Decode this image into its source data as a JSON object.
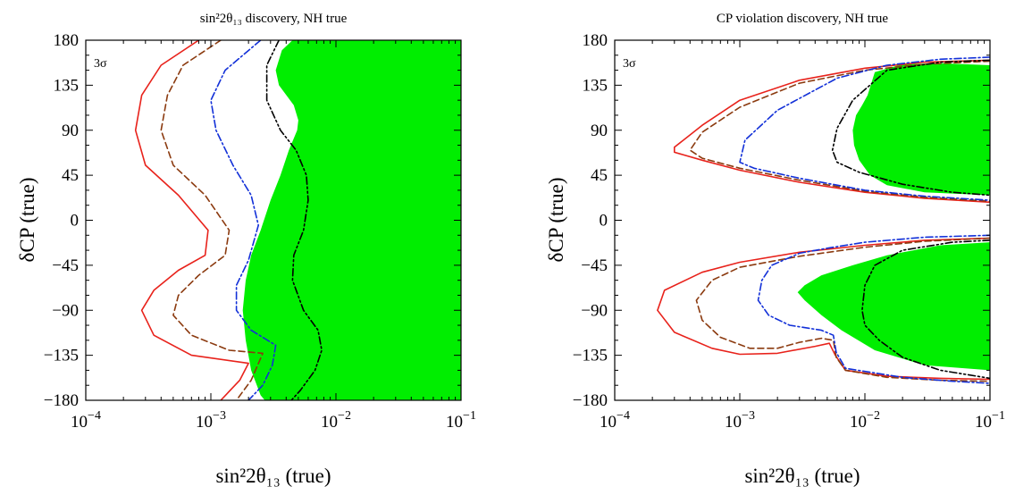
{
  "colors": {
    "region": "#00ee00",
    "dune_red": "#e8221b",
    "brown": "#8b3a0f",
    "blue": "#1230d8",
    "black": "#000000"
  },
  "chart_data": [
    {
      "type": "line",
      "title": "sin²2θ₁₃  discovery, NH true",
      "xlabel": "sin²2θ₁₃ (true)",
      "ylabel": "δCP (true)",
      "xscale": "log",
      "xlim": [
        0.0001,
        0.1
      ],
      "ylim": [
        -180,
        180
      ],
      "xticks": [
        0.0001,
        0.001,
        0.01,
        0.1
      ],
      "xtick_labels": [
        "10^-4",
        "10^-3",
        "10^-2",
        "10^-1"
      ],
      "yticks": [
        180,
        135,
        90,
        45,
        0,
        -45,
        -90,
        -135,
        -180
      ],
      "ytick_labels": [
        "180",
        "135",
        "90",
        "45",
        "0",
        "−45",
        "−90",
        "−135",
        "−180"
      ],
      "annotation": "3σ",
      "regions": [
        {
          "color": "#00ee00",
          "boundary_left": [
            [
              0.0045,
              180
            ],
            [
              0.0037,
              170
            ],
            [
              0.0033,
              150
            ],
            [
              0.0035,
              135
            ],
            [
              0.0046,
              115
            ],
            [
              0.005,
              100
            ],
            [
              0.0049,
              90
            ],
            [
              0.0042,
              70
            ],
            [
              0.0036,
              45
            ],
            [
              0.003,
              20
            ],
            [
              0.0025,
              -10
            ],
            [
              0.0021,
              -35
            ],
            [
              0.0019,
              -60
            ],
            [
              0.0018,
              -90
            ],
            [
              0.0019,
              -120
            ],
            [
              0.0021,
              -150
            ],
            [
              0.0025,
              -175
            ],
            [
              0.0027,
              -180
            ]
          ],
          "fills_to": "xmax"
        }
      ],
      "series": [
        {
          "color": "#e8221b",
          "style": "solid",
          "points": [
            [
              0.0008,
              180
            ],
            [
              0.0004,
              155
            ],
            [
              0.00028,
              125
            ],
            [
              0.00025,
              90
            ],
            [
              0.0003,
              55
            ],
            [
              0.00055,
              25
            ],
            [
              0.00095,
              -10
            ],
            [
              0.0009,
              -35
            ],
            [
              0.00055,
              -50
            ],
            [
              0.00035,
              -70
            ],
            [
              0.00028,
              -90
            ],
            [
              0.00035,
              -115
            ],
            [
              0.0007,
              -135
            ],
            [
              0.002,
              -143
            ],
            [
              0.0017,
              -160
            ],
            [
              0.0012,
              -180
            ]
          ]
        },
        {
          "color": "#8b3a0f",
          "style": "dashed",
          "points": [
            [
              0.0012,
              180
            ],
            [
              0.0006,
              155
            ],
            [
              0.00045,
              125
            ],
            [
              0.0004,
              90
            ],
            [
              0.0005,
              55
            ],
            [
              0.0009,
              25
            ],
            [
              0.0014,
              -10
            ],
            [
              0.0013,
              -35
            ],
            [
              0.0008,
              -55
            ],
            [
              0.00055,
              -75
            ],
            [
              0.0005,
              -95
            ],
            [
              0.0007,
              -115
            ],
            [
              0.0014,
              -130
            ],
            [
              0.0026,
              -133
            ],
            [
              0.0021,
              -160
            ],
            [
              0.0016,
              -180
            ]
          ]
        },
        {
          "color": "#1230d8",
          "style": "dashdot",
          "points": [
            [
              0.0025,
              180
            ],
            [
              0.0013,
              150
            ],
            [
              0.001,
              120
            ],
            [
              0.0011,
              90
            ],
            [
              0.0015,
              55
            ],
            [
              0.0021,
              25
            ],
            [
              0.0024,
              -5
            ],
            [
              0.002,
              -40
            ],
            [
              0.0016,
              -65
            ],
            [
              0.0016,
              -90
            ],
            [
              0.0021,
              -110
            ],
            [
              0.0033,
              -125
            ],
            [
              0.0031,
              -145
            ],
            [
              0.0026,
              -165
            ],
            [
              0.002,
              -180
            ]
          ]
        },
        {
          "color": "#000000",
          "style": "dashdotdot",
          "points": [
            [
              0.0035,
              180
            ],
            [
              0.0028,
              155
            ],
            [
              0.0028,
              120
            ],
            [
              0.0036,
              90
            ],
            [
              0.0048,
              70
            ],
            [
              0.0058,
              45
            ],
            [
              0.006,
              20
            ],
            [
              0.0055,
              -10
            ],
            [
              0.0046,
              -35
            ],
            [
              0.0045,
              -60
            ],
            [
              0.0055,
              -90
            ],
            [
              0.0072,
              -110
            ],
            [
              0.0077,
              -130
            ],
            [
              0.0068,
              -150
            ],
            [
              0.0052,
              -170
            ],
            [
              0.0044,
              -180
            ]
          ]
        }
      ]
    },
    {
      "type": "line",
      "title": "CP violation discovery, NH true",
      "xlabel": "sin²2θ₁₃ (true)",
      "ylabel": "δCP (true)",
      "xscale": "log",
      "xlim": [
        0.0001,
        0.1
      ],
      "ylim": [
        -180,
        180
      ],
      "xticks": [
        0.0001,
        0.001,
        0.01,
        0.1
      ],
      "xtick_labels": [
        "10^-4",
        "10^-3",
        "10^-2",
        "10^-1"
      ],
      "yticks": [
        180,
        135,
        90,
        45,
        0,
        -45,
        -90,
        -135,
        -180
      ],
      "ytick_labels": [
        "180",
        "135",
        "90",
        "45",
        "0",
        "−45",
        "−90",
        "−135",
        "−180"
      ],
      "annotation": "3σ",
      "regions": [
        {
          "color": "#00ee00",
          "points": [
            [
              0.1,
              155
            ],
            [
              0.04,
              157
            ],
            [
              0.02,
              156
            ],
            [
              0.012,
              148
            ],
            [
              0.0105,
              125
            ],
            [
              0.0095,
              115
            ],
            [
              0.0085,
              105
            ],
            [
              0.008,
              90
            ],
            [
              0.0082,
              75
            ],
            [
              0.009,
              60
            ],
            [
              0.011,
              45
            ],
            [
              0.015,
              35
            ],
            [
              0.03,
              28
            ],
            [
              0.1,
              25
            ]
          ]
        },
        {
          "color": "#00ee00",
          "points": [
            [
              0.1,
              -22
            ],
            [
              0.04,
              -25
            ],
            [
              0.015,
              -35
            ],
            [
              0.008,
              -45
            ],
            [
              0.0045,
              -55
            ],
            [
              0.0033,
              -65
            ],
            [
              0.0029,
              -72
            ],
            [
              0.0033,
              -80
            ],
            [
              0.0045,
              -95
            ],
            [
              0.0065,
              -110
            ],
            [
              0.012,
              -130
            ],
            [
              0.03,
              -145
            ],
            [
              0.1,
              -150
            ]
          ]
        }
      ],
      "series": [
        {
          "color": "#e8221b",
          "style": "solid",
          "points": [
            [
              0.1,
              160
            ],
            [
              0.03,
              158
            ],
            [
              0.01,
              152
            ],
            [
              0.003,
              140
            ],
            [
              0.001,
              120
            ],
            [
              0.0005,
              95
            ],
            [
              0.0003,
              73
            ],
            [
              0.0003,
              68
            ],
            [
              0.0005,
              60
            ],
            [
              0.001,
              50
            ],
            [
              0.003,
              38
            ],
            [
              0.01,
              28
            ],
            [
              0.03,
              22
            ],
            [
              0.1,
              18
            ]
          ]
        },
        {
          "color": "#8b3a0f",
          "style": "dashed",
          "points": [
            [
              0.1,
              159
            ],
            [
              0.03,
              156
            ],
            [
              0.01,
              150
            ],
            [
              0.003,
              137
            ],
            [
              0.001,
              113
            ],
            [
              0.0005,
              88
            ],
            [
              0.0004,
              70
            ],
            [
              0.0005,
              62
            ],
            [
              0.001,
              52
            ],
            [
              0.003,
              40
            ],
            [
              0.01,
              29
            ],
            [
              0.03,
              23
            ],
            [
              0.1,
              19
            ]
          ]
        },
        {
          "color": "#1230d8",
          "style": "dashdot",
          "points": [
            [
              0.1,
              163
            ],
            [
              0.04,
              161
            ],
            [
              0.015,
              155
            ],
            [
              0.006,
              142
            ],
            [
              0.002,
              110
            ],
            [
              0.0011,
              80
            ],
            [
              0.001,
              58
            ],
            [
              0.0013,
              52
            ],
            [
              0.003,
              42
            ],
            [
              0.01,
              30
            ],
            [
              0.03,
              24
            ],
            [
              0.1,
              20
            ]
          ]
        },
        {
          "color": "#000000",
          "style": "dashdotdot",
          "points": [
            [
              0.1,
              160
            ],
            [
              0.04,
              158
            ],
            [
              0.015,
              150
            ],
            [
              0.008,
              120
            ],
            [
              0.006,
              92
            ],
            [
              0.0055,
              70
            ],
            [
              0.006,
              58
            ],
            [
              0.009,
              48
            ],
            [
              0.02,
              36
            ],
            [
              0.05,
              28
            ],
            [
              0.1,
              25
            ]
          ]
        },
        {
          "color": "#e8221b",
          "style": "solid",
          "points": [
            [
              0.1,
              -18
            ],
            [
              0.03,
              -20
            ],
            [
              0.01,
              -25
            ],
            [
              0.003,
              -32
            ],
            [
              0.001,
              -42
            ],
            [
              0.0005,
              -52
            ],
            [
              0.00025,
              -70
            ],
            [
              0.00022,
              -90
            ],
            [
              0.0003,
              -112
            ],
            [
              0.0006,
              -128
            ],
            [
              0.001,
              -134
            ],
            [
              0.002,
              -133
            ],
            [
              0.004,
              -126
            ],
            [
              0.0052,
              -123
            ],
            [
              0.0058,
              -135
            ],
            [
              0.007,
              -150
            ],
            [
              0.015,
              -156
            ],
            [
              0.04,
              -158
            ],
            [
              0.1,
              -159
            ]
          ]
        },
        {
          "color": "#8b3a0f",
          "style": "dashed",
          "points": [
            [
              0.1,
              -18
            ],
            [
              0.03,
              -21
            ],
            [
              0.01,
              -27
            ],
            [
              0.003,
              -36
            ],
            [
              0.001,
              -47
            ],
            [
              0.0006,
              -60
            ],
            [
              0.00045,
              -80
            ],
            [
              0.0005,
              -100
            ],
            [
              0.0007,
              -117
            ],
            [
              0.0012,
              -128
            ],
            [
              0.002,
              -128
            ],
            [
              0.003,
              -122
            ],
            [
              0.0045,
              -118
            ],
            [
              0.0056,
              -120
            ],
            [
              0.0059,
              -137
            ],
            [
              0.007,
              -150
            ],
            [
              0.015,
              -157
            ],
            [
              0.04,
              -160
            ],
            [
              0.1,
              -161
            ]
          ]
        },
        {
          "color": "#1230d8",
          "style": "dashdot",
          "points": [
            [
              0.1,
              -15
            ],
            [
              0.03,
              -17
            ],
            [
              0.01,
              -22
            ],
            [
              0.005,
              -28
            ],
            [
              0.003,
              -33
            ],
            [
              0.0018,
              -45
            ],
            [
              0.0015,
              -60
            ],
            [
              0.0014,
              -80
            ],
            [
              0.0017,
              -95
            ],
            [
              0.0025,
              -105
            ],
            [
              0.0045,
              -110
            ],
            [
              0.0056,
              -115
            ],
            [
              0.0059,
              -132
            ],
            [
              0.007,
              -148
            ],
            [
              0.02,
              -157
            ],
            [
              0.05,
              -161
            ],
            [
              0.1,
              -163
            ]
          ]
        },
        {
          "color": "#000000",
          "style": "dashdotdot",
          "points": [
            [
              0.1,
              -20
            ],
            [
              0.05,
              -22
            ],
            [
              0.02,
              -30
            ],
            [
              0.012,
              -45
            ],
            [
              0.01,
              -65
            ],
            [
              0.0095,
              -90
            ],
            [
              0.01,
              -105
            ],
            [
              0.013,
              -120
            ],
            [
              0.02,
              -137
            ],
            [
              0.04,
              -150
            ],
            [
              0.1,
              -158
            ]
          ]
        }
      ]
    }
  ]
}
